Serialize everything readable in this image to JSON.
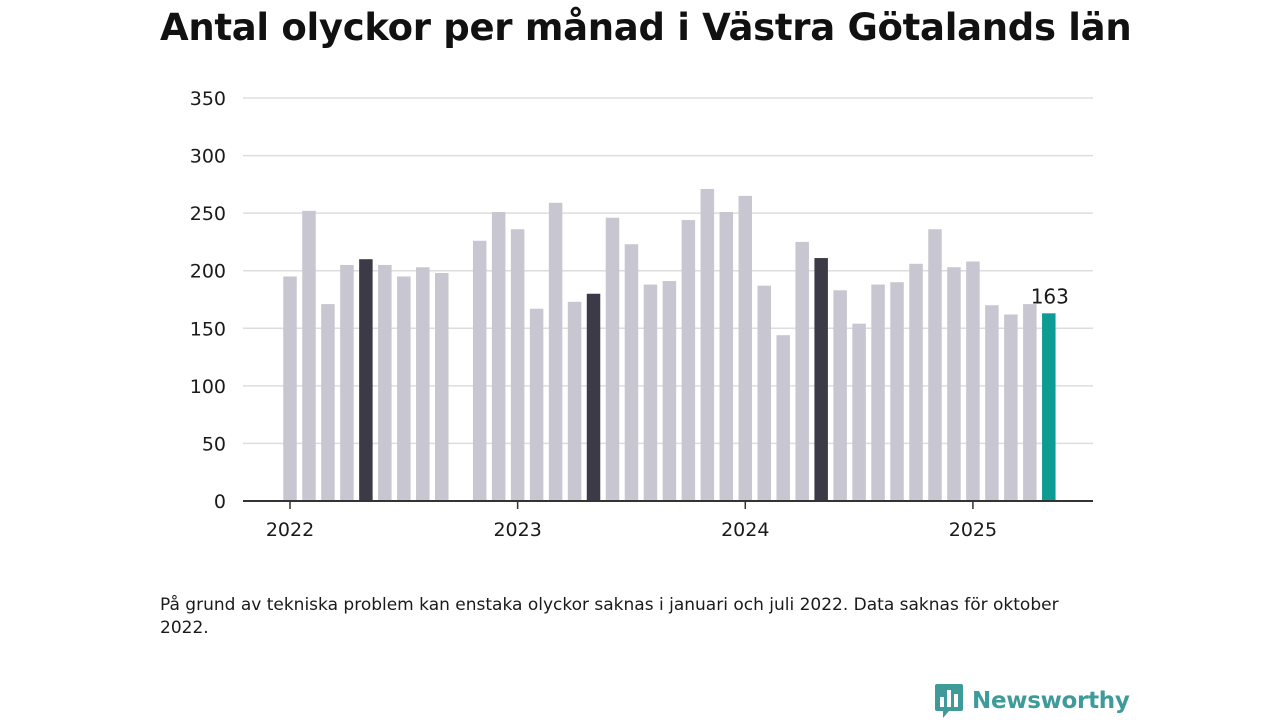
{
  "title": "Antal olyckor per månad i Västra Götalands län",
  "note": "På grund av tekniska problem kan enstaka olyckor saknas i januari och juli 2022. Data saknas för oktober 2022.",
  "brand": {
    "name": "Newsworthy",
    "icon": "newsworthy-chart-bubble-icon",
    "color": "#3f9a9a"
  },
  "colors": {
    "bar": "#c8c6d0",
    "bar_highlight": "#3d3a48",
    "bar_latest": "#0c9c93",
    "grid": "#dddddd",
    "axis": "#333333",
    "text": "#1a1a1a"
  },
  "chart_data": {
    "type": "bar",
    "title": "Antal olyckor per månad i Västra Götalands län",
    "xlabel": "",
    "ylabel": "",
    "ylim": [
      0,
      350
    ],
    "yticks": [
      0,
      50,
      100,
      150,
      200,
      250,
      300,
      350
    ],
    "grid": true,
    "x_tick_labels": [
      {
        "label": "2022",
        "index": 0
      },
      {
        "label": "2023",
        "index": 12
      },
      {
        "label": "2024",
        "index": 24
      },
      {
        "label": "2025",
        "index": 36
      }
    ],
    "categories": [
      "2022-01",
      "2022-02",
      "2022-03",
      "2022-04",
      "2022-05",
      "2022-06",
      "2022-07",
      "2022-08",
      "2022-09",
      "2022-10",
      "2022-11",
      "2022-12",
      "2023-01",
      "2023-02",
      "2023-03",
      "2023-04",
      "2023-05",
      "2023-06",
      "2023-07",
      "2023-08",
      "2023-09",
      "2023-10",
      "2023-11",
      "2023-12",
      "2024-01",
      "2024-02",
      "2024-03",
      "2024-04",
      "2024-05",
      "2024-06",
      "2024-07",
      "2024-08",
      "2024-09",
      "2024-10",
      "2024-11",
      "2024-12",
      "2025-01",
      "2025-02",
      "2025-03",
      "2025-04",
      "2025-05"
    ],
    "values": [
      195,
      252,
      171,
      205,
      210,
      205,
      195,
      203,
      198,
      null,
      226,
      251,
      236,
      167,
      259,
      173,
      180,
      246,
      223,
      188,
      191,
      244,
      271,
      251,
      265,
      187,
      144,
      225,
      211,
      183,
      154,
      188,
      190,
      206,
      236,
      203,
      208,
      170,
      162,
      171,
      163
    ],
    "highlighted": [
      "2022-05",
      "2023-05",
      "2024-05"
    ],
    "latest": "2025-05",
    "annotations": [
      {
        "category": "2025-05",
        "text": "163"
      }
    ]
  }
}
